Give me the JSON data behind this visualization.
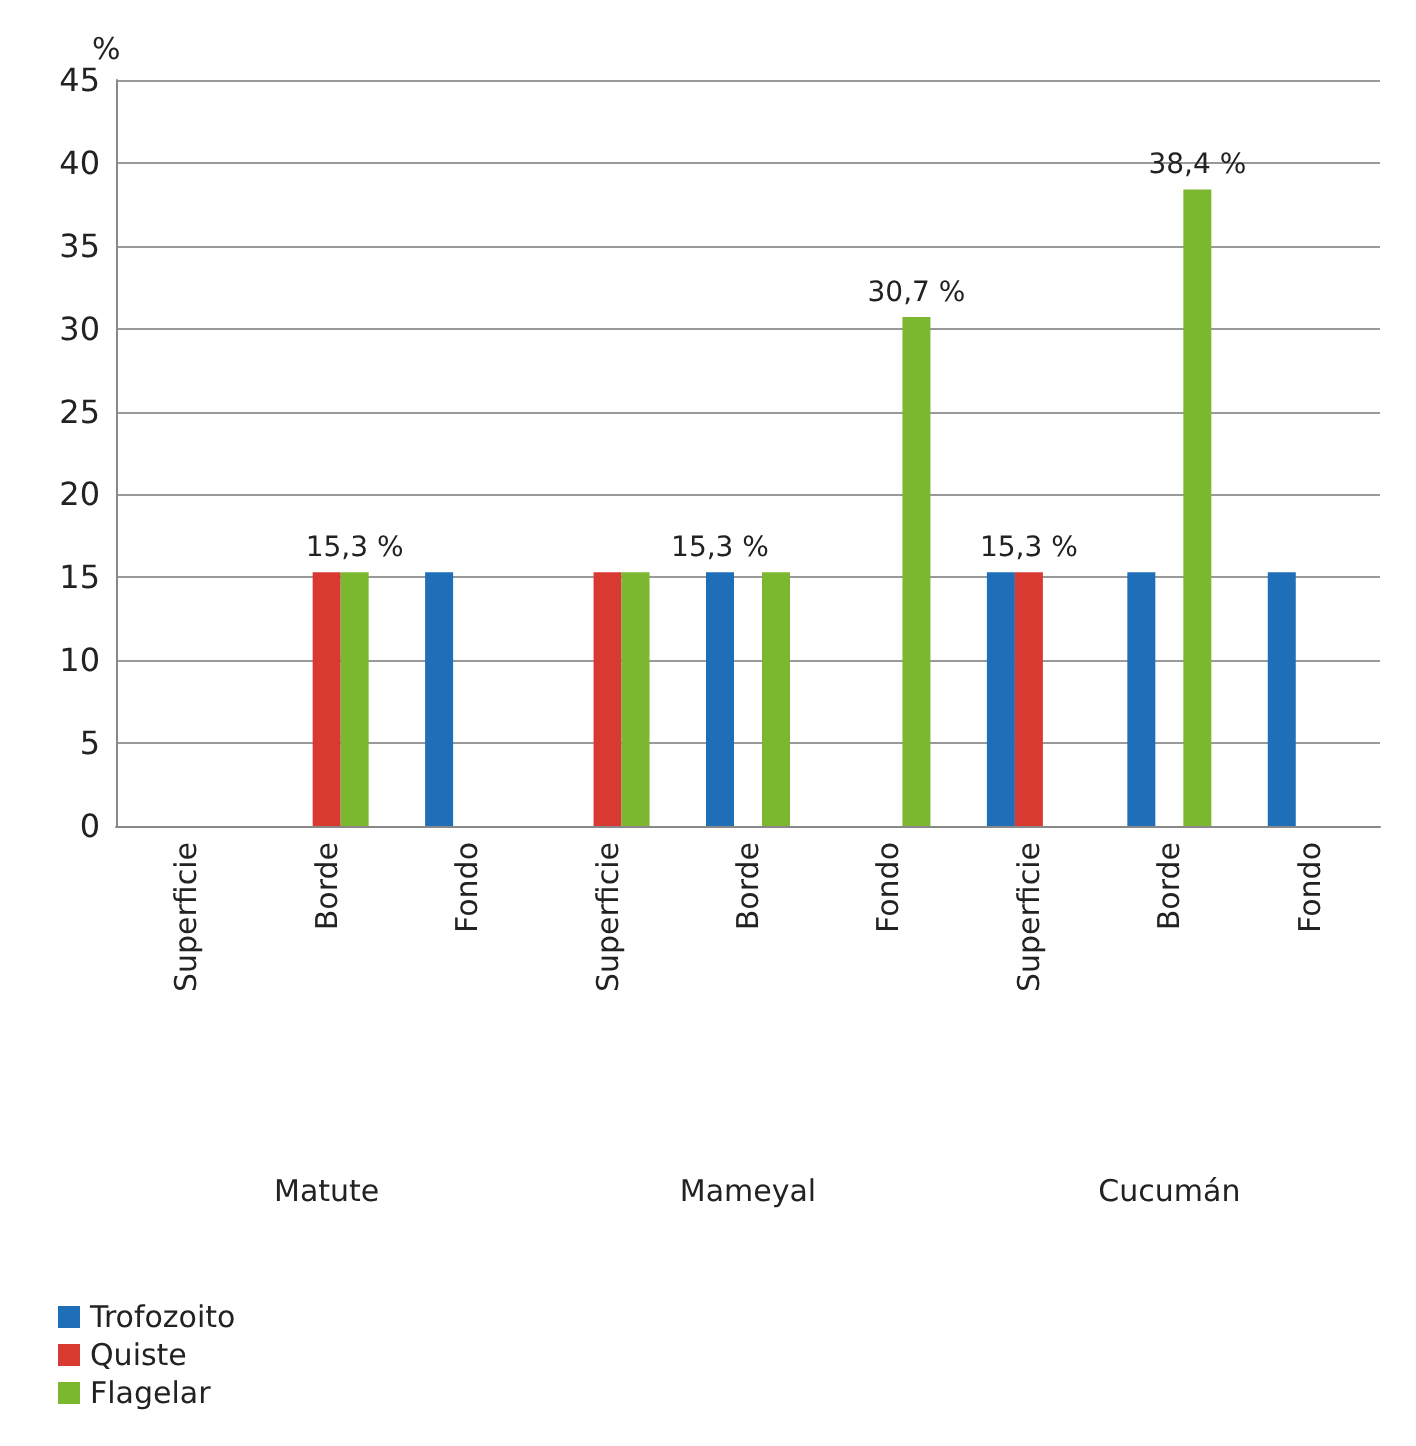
{
  "chart_data": {
    "type": "bar",
    "ylabel": "%",
    "categories": [
      "Superficie",
      "Borde",
      "Fondo",
      "Superficie",
      "Borde",
      "Fondo",
      "Superficie",
      "Borde",
      "Fondo"
    ],
    "series": [
      {
        "name": "Trofozoito",
        "color": "#1f6fb8",
        "values": [
          null,
          null,
          15.3,
          null,
          15.3,
          null,
          15.3,
          15.3,
          15.3
        ],
        "value_labels": [
          null,
          null,
          null,
          null,
          "15,3 %",
          null,
          null,
          null,
          null
        ]
      },
      {
        "name": "Quiste",
        "color": "#d83a32",
        "values": [
          null,
          15.3,
          null,
          15.3,
          null,
          null,
          15.3,
          null,
          null
        ],
        "value_labels": [
          null,
          null,
          null,
          null,
          null,
          null,
          "15,3 %",
          null,
          null
        ]
      },
      {
        "name": "Flagelar",
        "color": "#7cb82f",
        "values": [
          null,
          15.3,
          null,
          15.3,
          15.3,
          30.7,
          null,
          38.4,
          null
        ],
        "value_labels": [
          null,
          "15,3 %",
          null,
          null,
          null,
          "30,7 %",
          null,
          "38,4 %",
          null
        ]
      }
    ],
    "annotations": [
      "Matute",
      "Mameyal",
      "Cucumán"
    ],
    "ylim": [
      0,
      45
    ],
    "yticks": [
      0,
      5,
      10,
      15,
      20,
      25,
      30,
      35,
      40,
      45
    ],
    "grid": "y",
    "legend": "bottom left"
  }
}
